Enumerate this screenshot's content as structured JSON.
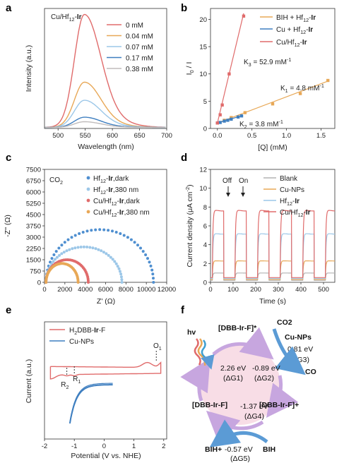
{
  "panels": {
    "a": {
      "letter": "a"
    },
    "b": {
      "letter": "b"
    },
    "c": {
      "letter": "c"
    },
    "d": {
      "letter": "d"
    },
    "e": {
      "letter": "e"
    },
    "f": {
      "letter": "f"
    }
  },
  "chart_data": [
    {
      "panel": "a",
      "type": "line",
      "annotation": "Cu/Hf12-Ir",
      "xlabel": "Wavelength (nm)",
      "ylabel": "Intensity (a.u.)",
      "xlim": [
        475,
        700
      ],
      "xticks": [
        500,
        550,
        600,
        650,
        700
      ],
      "yticks_shown": false,
      "legend_position": "top-right",
      "series": [
        {
          "name": "0 mM",
          "color": "#e06b6b",
          "peak_x": 548,
          "peak_y": 1.0
        },
        {
          "name": "0.04 mM",
          "color": "#e8a857",
          "peak_x": 548,
          "peak_y": 0.4
        },
        {
          "name": "0.07 mM",
          "color": "#9cc7e8",
          "peak_x": 548,
          "peak_y": 0.24
        },
        {
          "name": "0.17 mM",
          "color": "#3f7fc0",
          "peak_x": 548,
          "peak_y": 0.09
        },
        {
          "name": "0.38 mM",
          "color": "#c0bcbc",
          "peak_x": 548,
          "peak_y": 0.05
        }
      ]
    },
    {
      "panel": "b",
      "type": "scatter",
      "xlabel": "[Q] (mM)",
      "ylabel": "I0 / I",
      "xlim": [
        -0.1,
        1.7
      ],
      "ylim": [
        0,
        22
      ],
      "xticks": [
        0.0,
        0.5,
        1.0,
        1.5
      ],
      "yticks": [
        0,
        5,
        10,
        15,
        20
      ],
      "legend_position": "top-right",
      "series": [
        {
          "name": "BIH + Hf12-Ir",
          "color": "#e8a857",
          "x": [
            0,
            0.1,
            0.2,
            0.4,
            0.8,
            1.2,
            1.6
          ],
          "y": [
            1.0,
            1.5,
            2.0,
            2.9,
            4.5,
            6.4,
            8.8
          ],
          "fit": "K1 = 4.8 mM-1"
        },
        {
          "name": "Cu + Hf12-Ir",
          "color": "#3f7fc0",
          "x": [
            0,
            0.04,
            0.1,
            0.15,
            0.2,
            0.3,
            0.35
          ],
          "y": [
            1.0,
            1.1,
            1.35,
            1.5,
            1.7,
            2.1,
            2.3
          ],
          "fit": "K2 = 3.8 mM-1"
        },
        {
          "name": "Cu/Hf12-Ir",
          "color": "#e06b6b",
          "x": [
            0,
            0.04,
            0.07,
            0.17,
            0.38
          ],
          "y": [
            1.0,
            2.5,
            4.3,
            10.0,
            20.6
          ],
          "fit": "K3 = 52.9 mM-1"
        }
      ],
      "annotations": [
        "K3 = 52.9 mM-1",
        "K1 = 4.8 mM-1",
        "K2 = 3.8 mM-1"
      ]
    },
    {
      "panel": "c",
      "type": "scatter",
      "annotation": "CO2",
      "xlabel": "Z' (Ω)",
      "ylabel": "-Z'' (Ω)",
      "xlim": [
        0,
        12000
      ],
      "ylim": [
        0,
        7500
      ],
      "xticks": [
        0,
        2000,
        4000,
        6000,
        8000,
        10000,
        12000
      ],
      "yticks": [
        0,
        750,
        1500,
        2250,
        3000,
        3750,
        4500,
        5250,
        6000,
        6750,
        7500
      ],
      "legend_position": "top-center",
      "series": [
        {
          "name": "Hf12-Ir,dark",
          "color": "#4f8fd0",
          "x_start": 150,
          "x_end": 10700,
          "max_y": 3500
        },
        {
          "name": "Hf12-Ir,380 nm",
          "color": "#9cc7e8",
          "x_start": 150,
          "x_end": 7600,
          "max_y": 2350
        },
        {
          "name": "Cu/Hf12-Ir,dark",
          "color": "#e06b6b",
          "x_start": 150,
          "x_end": 4300,
          "max_y": 1500
        },
        {
          "name": "Cu/Hf12-Ir,380 nm",
          "color": "#e8a857",
          "x_start": 150,
          "x_end": 3300,
          "max_y": 1250
        }
      ]
    },
    {
      "panel": "d",
      "type": "line",
      "xlabel": "Time (s)",
      "ylabel": "Current density (μA cm-2)",
      "xlim": [
        0,
        550
      ],
      "ylim": [
        0,
        12
      ],
      "xticks": [
        0,
        100,
        200,
        300,
        400,
        500
      ],
      "yticks": [
        0,
        2,
        4,
        6,
        8,
        10,
        12
      ],
      "annotations": [
        "Off",
        "On"
      ],
      "legend_position": "top-right",
      "light_on_intervals": [
        [
          8,
          58
        ],
        [
          108,
          158
        ],
        [
          208,
          258
        ],
        [
          308,
          358
        ],
        [
          408,
          458
        ],
        [
          508,
          550
        ]
      ],
      "series": [
        {
          "name": "Blank",
          "color": "#b4b4b4",
          "on_level": 1.0,
          "baseline": 0.2
        },
        {
          "name": "Cu-NPs",
          "color": "#e8a857",
          "on_level": 2.3,
          "baseline": 0.3
        },
        {
          "name": "Hf12-Ir",
          "color": "#9cc7e8",
          "on_level": 5.2,
          "baseline": 0.4
        },
        {
          "name": "Cu/Hf12-Ir",
          "color": "#e06b6b",
          "on_level": 7.7,
          "baseline": 0.5
        }
      ]
    },
    {
      "panel": "e",
      "type": "line",
      "xlabel": "Potential (V vs. NHE)",
      "ylabel": "Current (a.u.)",
      "xlim": [
        -2,
        2.1
      ],
      "xticks": [
        -2,
        -1,
        0,
        1,
        2
      ],
      "yticks_shown": false,
      "annotations": [
        "O1",
        "R1",
        "R2"
      ],
      "legend_position": "top-left",
      "series": [
        {
          "name": "H2DBB-Ir-F",
          "color": "#e06b6b"
        },
        {
          "name": "Cu-NPs",
          "color": "#3f7fc0"
        }
      ]
    }
  ],
  "diagram_f": {
    "hv": "hv",
    "top": "[DBB-Ir-F]*",
    "co2": "CO2",
    "cu": "Cu-NPs",
    "cu_energy": "0.81 eV",
    "cu_dg": "(ΔG3)",
    "co": "CO",
    "g1_energy": "2.26 eV",
    "g1": "(ΔG1)",
    "g2_energy": "-0.89 eV",
    "g2": "(ΔG2)",
    "left": "[DBB-Ir-F]",
    "right": "[DBB-Ir-F]+",
    "g4_energy": "-1.37 eV",
    "g4": "(ΔG4)",
    "bih_plus": "BIH+",
    "g5_energy": "-0.57 eV",
    "g5": "(ΔG5)",
    "bih": "BIH"
  }
}
